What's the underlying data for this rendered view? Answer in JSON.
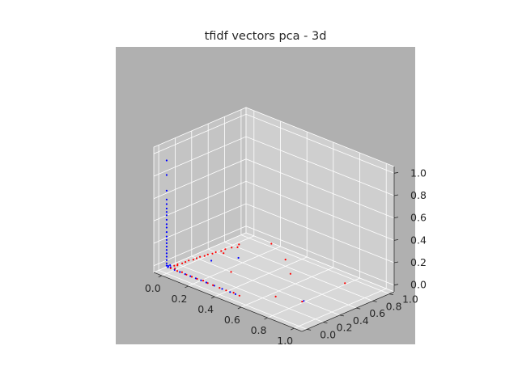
{
  "chart_data": {
    "type": "scatter",
    "title": "tfidf vectors pca - 3d",
    "projection": "3d",
    "grid": true,
    "xlim": [
      0.0,
      1.0
    ],
    "ylim": [
      0.0,
      1.0
    ],
    "zlim": [
      0.0,
      1.0
    ],
    "xticks": [
      "0.0",
      "0.2",
      "0.4",
      "0.6",
      "0.8",
      "1.0"
    ],
    "yticks": [
      "0.0",
      "0.2",
      "0.4",
      "0.6",
      "0.8",
      "1.0"
    ],
    "zticks": [
      "0.0",
      "0.2",
      "0.4",
      "0.6",
      "0.8",
      "1.0"
    ],
    "colors": {
      "axes_face": "#b0b0b0",
      "pane": "#cccccc",
      "grid": "#ffffff",
      "blue": "#0000ff",
      "red": "#ff0000"
    },
    "series": [
      {
        "color": "#0000ff",
        "points": [
          [
            0.0,
            0.0,
            0.95
          ],
          [
            0.0,
            0.0,
            0.82
          ],
          [
            0.0,
            0.0,
            0.68
          ],
          [
            0.0,
            0.0,
            0.6
          ],
          [
            0.0,
            0.0,
            0.56
          ],
          [
            0.0,
            0.0,
            0.52
          ],
          [
            0.0,
            0.0,
            0.49
          ],
          [
            0.0,
            0.0,
            0.46
          ],
          [
            0.0,
            0.0,
            0.42
          ],
          [
            0.0,
            0.0,
            0.38
          ],
          [
            0.0,
            0.0,
            0.35
          ],
          [
            0.0,
            0.0,
            0.31
          ],
          [
            0.0,
            0.0,
            0.27
          ],
          [
            0.0,
            0.0,
            0.24
          ],
          [
            0.0,
            0.0,
            0.21
          ],
          [
            0.0,
            0.0,
            0.18
          ],
          [
            0.0,
            0.0,
            0.15
          ],
          [
            0.0,
            0.0,
            0.12
          ],
          [
            0.0,
            0.0,
            0.09
          ],
          [
            0.0,
            0.0,
            0.06
          ],
          [
            0.0,
            0.0,
            0.03
          ],
          [
            0.0,
            0.0,
            0.01
          ],
          [
            0.01,
            0.0,
            0.0
          ],
          [
            0.02,
            0.01,
            0.02
          ],
          [
            0.0,
            0.02,
            0.0
          ],
          [
            0.03,
            0.0,
            0.01
          ],
          [
            0.06,
            0.0,
            0.0
          ],
          [
            0.1,
            0.0,
            0.0
          ],
          [
            0.14,
            0.0,
            0.0
          ],
          [
            0.18,
            0.0,
            0.0
          ],
          [
            0.22,
            0.0,
            0.0
          ],
          [
            0.26,
            0.0,
            0.0
          ],
          [
            0.3,
            0.0,
            0.0
          ],
          [
            0.36,
            0.0,
            0.0
          ],
          [
            0.42,
            0.0,
            0.0
          ],
          [
            0.48,
            0.0,
            0.0
          ],
          [
            0.52,
            0.0,
            0.0
          ],
          [
            0.12,
            0.35,
            0.0
          ],
          [
            0.2,
            0.55,
            0.0
          ],
          [
            0.85,
            0.3,
            0.0
          ]
        ]
      },
      {
        "color": "#ff0000",
        "points": [
          [
            0.03,
            0.0,
            0.0
          ],
          [
            0.05,
            0.02,
            0.0
          ],
          [
            0.08,
            0.0,
            0.0
          ],
          [
            0.11,
            0.01,
            0.0
          ],
          [
            0.15,
            0.0,
            0.0
          ],
          [
            0.19,
            0.0,
            0.0
          ],
          [
            0.23,
            0.0,
            0.0
          ],
          [
            0.27,
            0.01,
            0.0
          ],
          [
            0.31,
            0.0,
            0.0
          ],
          [
            0.35,
            0.0,
            0.0
          ],
          [
            0.4,
            0.0,
            0.0
          ],
          [
            0.45,
            0.0,
            0.0
          ],
          [
            0.5,
            0.01,
            0.0
          ],
          [
            0.55,
            0.0,
            0.0
          ],
          [
            0.02,
            0.06,
            0.0
          ],
          [
            0.02,
            0.1,
            0.0
          ],
          [
            0.03,
            0.14,
            0.0
          ],
          [
            0.03,
            0.18,
            0.0
          ],
          [
            0.03,
            0.22,
            0.0
          ],
          [
            0.04,
            0.26,
            0.0
          ],
          [
            0.04,
            0.3,
            0.0
          ],
          [
            0.04,
            0.34,
            0.0
          ],
          [
            0.05,
            0.38,
            0.0
          ],
          [
            0.05,
            0.42,
            0.0
          ],
          [
            0.06,
            0.46,
            0.0
          ],
          [
            0.06,
            0.5,
            0.0
          ],
          [
            0.07,
            0.55,
            0.0
          ],
          [
            0.07,
            0.6,
            0.0
          ],
          [
            0.08,
            0.66,
            0.0
          ],
          [
            0.1,
            0.7,
            0.0
          ],
          [
            0.08,
            0.75,
            0.0
          ],
          [
            0.2,
            0.95,
            0.0
          ],
          [
            0.3,
            0.3,
            0.0
          ],
          [
            0.55,
            0.62,
            0.0
          ],
          [
            0.4,
            0.8,
            0.0
          ],
          [
            0.85,
            0.8,
            0.0
          ],
          [
            0.7,
            0.2,
            0.0
          ],
          [
            0.85,
            0.28,
            0.0
          ],
          [
            0.15,
            0.45,
            0.05
          ],
          [
            0.05,
            0.05,
            0.02
          ]
        ]
      }
    ]
  }
}
